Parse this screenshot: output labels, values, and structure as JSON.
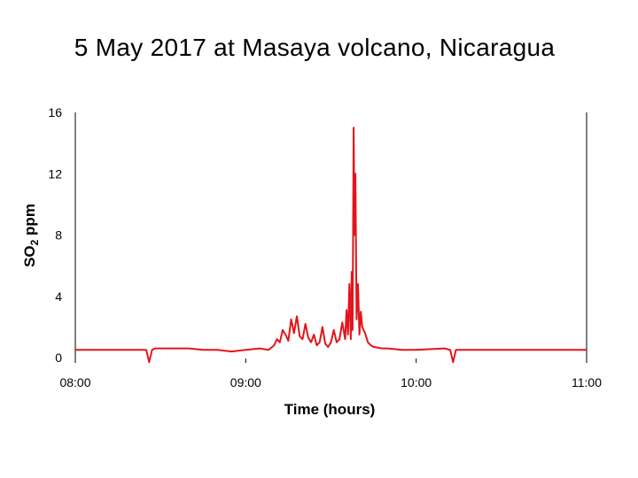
{
  "chart_data": {
    "type": "line",
    "title": "5 May 2017 at Masaya volcano, Nicaragua",
    "xlabel": "Time (hours)",
    "ylabel": "SO2 ppm",
    "ylabel_main": "SO",
    "ylabel_sub": "2",
    "ylabel_rest": " ppm",
    "xlim": [
      "08:00",
      "11:00"
    ],
    "ylim": [
      0,
      16
    ],
    "x_ticks": [
      "08:00",
      "09:00",
      "10:00",
      "11:00"
    ],
    "y_ticks": [
      "0",
      "4",
      "8",
      "12",
      "16"
    ],
    "grid": false,
    "legend": "none",
    "line_color": "#e3141b",
    "series": [
      {
        "x": [
          "08:00",
          "08:10",
          "08:20",
          "08:25",
          "08:26",
          "08:27",
          "08:28",
          "08:35",
          "08:40",
          "08:45",
          "08:50",
          "08:55",
          "09:00",
          "09:05",
          "09:08",
          "09:10",
          "09:11",
          "09:12",
          "09:13",
          "09:14",
          "09:15",
          "09:16",
          "09:17",
          "09:18",
          "09:19",
          "09:20",
          "09:21",
          "09:22",
          "09:23",
          "09:24",
          "09:25",
          "09:26",
          "09:27",
          "09:28",
          "09:29",
          "09:30",
          "09:31",
          "09:32",
          "09:33",
          "09:34",
          "09:35",
          "09:35.5",
          "09:36",
          "09:36.5",
          "09:37",
          "09:37.3",
          "09:37.6",
          "09:38",
          "09:38.3",
          "09:38.6",
          "09:39",
          "09:39.5",
          "09:40",
          "09:40.5",
          "09:41",
          "09:42",
          "09:43",
          "09:44",
          "09:45",
          "09:48",
          "09:50",
          "09:55",
          "10:00",
          "10:10",
          "10:12",
          "10:13",
          "10:14",
          "10:20",
          "10:30",
          "10:45",
          "11:00"
        ],
        "y": [
          0.5,
          0.5,
          0.5,
          0.5,
          -0.3,
          0.5,
          0.6,
          0.6,
          0.6,
          0.5,
          0.5,
          0.4,
          0.5,
          0.6,
          0.5,
          0.8,
          1.2,
          1.0,
          1.8,
          1.5,
          1.1,
          2.5,
          1.6,
          2.7,
          1.4,
          1.2,
          2.2,
          1.3,
          1.0,
          1.5,
          0.8,
          1.0,
          2.0,
          0.9,
          0.7,
          1.0,
          1.8,
          1.0,
          1.2,
          2.3,
          1.2,
          3.1,
          1.5,
          4.8,
          1.2,
          5.6,
          1.8,
          15.0,
          8.0,
          12.0,
          2.5,
          4.8,
          1.5,
          3.0,
          2.0,
          1.6,
          1.0,
          0.8,
          0.7,
          0.6,
          0.6,
          0.5,
          0.5,
          0.6,
          0.5,
          -0.3,
          0.5,
          0.5,
          0.5,
          0.5,
          0.5
        ]
      }
    ]
  }
}
